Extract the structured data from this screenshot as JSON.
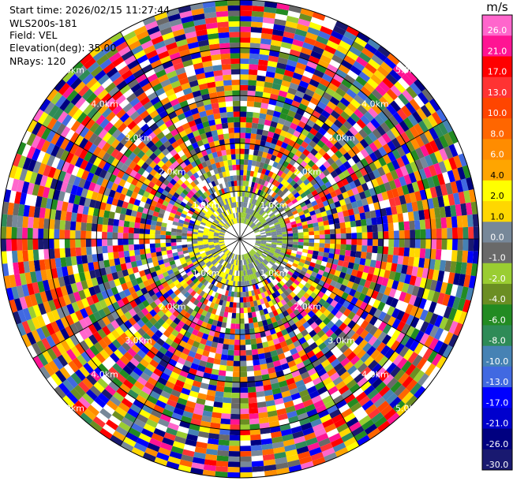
{
  "info": {
    "start_time": "Start time: 2026/02/15 11:27:44",
    "station": "WLS200s-181",
    "field": "Field: VEL",
    "elevation": "Elevation(deg): 35.00",
    "nrays": "NRays: 120"
  },
  "colorbar": {
    "unit": "m/s",
    "ticks": [
      "26.0",
      "21.0",
      "17.0",
      "13.0",
      "10.0",
      "8.0",
      "6.0",
      "4.0",
      "2.0",
      "1.0",
      "0.0",
      "-1.0",
      "-2.0",
      "-4.0",
      "-6.0",
      "-8.0",
      "-10.0",
      "-13.0",
      "-17.0",
      "-21.0",
      "-26.0",
      "-30.0"
    ],
    "colors": [
      "#ff66cc",
      "#ff1493",
      "#ff0000",
      "#ff3333",
      "#ff4500",
      "#ff6600",
      "#ff8c00",
      "#ffa500",
      "#ffff00",
      "#ffd700",
      "#778899",
      "#696969",
      "#9acd32",
      "#6b8e23",
      "#228b22",
      "#2e8b57",
      "#4682b4",
      "#4169e1",
      "#0000ff",
      "#0000cd",
      "#000080",
      "#191970"
    ]
  },
  "chart_data": {
    "type": "ppi",
    "field": "VEL",
    "unit": "m/s",
    "nrays": 120,
    "range_rings_km": [
      1,
      2,
      3,
      4,
      5
    ],
    "range_ring_labels": [
      "1.0km",
      "2.0km",
      "3.0km",
      "4.0km",
      "5.0km"
    ],
    "max_range_km": 5,
    "gates": 45,
    "velocity_min": -30,
    "velocity_max": 30
  }
}
